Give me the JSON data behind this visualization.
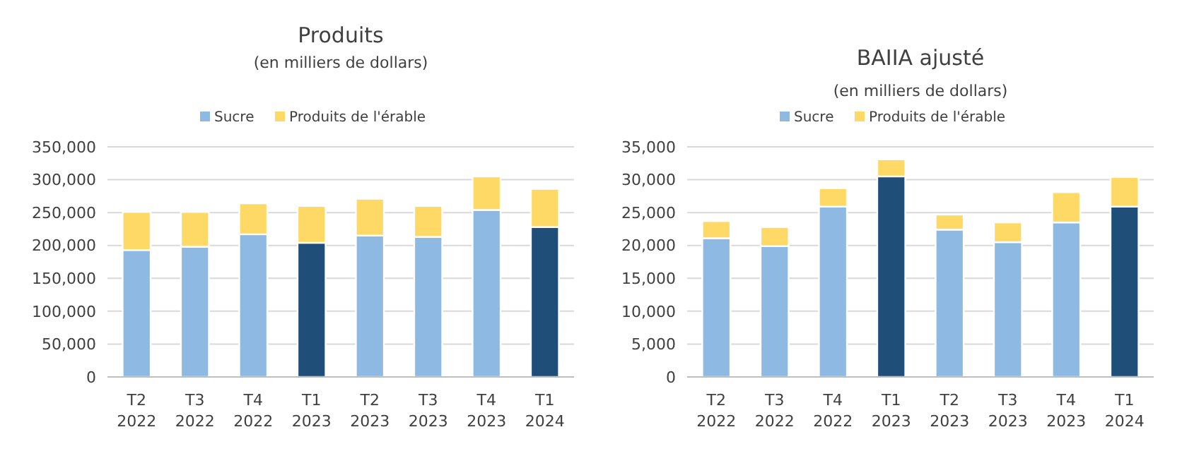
{
  "chart_data": [
    {
      "type": "bar",
      "title": "Produits",
      "subtitle": "(en milliers de dollars)",
      "categories": [
        "T2 2022",
        "T3 2022",
        "T4 2022",
        "T1 2023",
        "T2 2023",
        "T3 2023",
        "T4 2023",
        "T1 2024"
      ],
      "stacked": true,
      "series": [
        {
          "name": "Sucre",
          "color": "#8db9e2",
          "colors": [
            "#8db9e2",
            "#8db9e2",
            "#8db9e2",
            "#1f4e79",
            "#8db9e2",
            "#8db9e2",
            "#8db9e2",
            "#1f4e79"
          ],
          "values": [
            193000,
            198000,
            217000,
            204000,
            215000,
            213000,
            254000,
            228000
          ]
        },
        {
          "name": "Produits de l'érable",
          "color": "#ffd966",
          "values": [
            58000,
            53000,
            47000,
            56000,
            56000,
            47000,
            51000,
            58000
          ]
        }
      ],
      "ylim": [
        0,
        350000
      ],
      "yticks": [
        {
          "value": 0,
          "label": "0"
        },
        {
          "value": 50000,
          "label": "50,000"
        },
        {
          "value": 100000,
          "label": "100,000"
        },
        {
          "value": 150000,
          "label": "150,000"
        },
        {
          "value": 200000,
          "label": "200,000"
        },
        {
          "value": 250000,
          "label": "250,000"
        },
        {
          "value": 300000,
          "label": "300,000"
        },
        {
          "value": 350000,
          "label": "350,000"
        }
      ],
      "grid": "y",
      "legend": "top"
    },
    {
      "type": "bar",
      "title": "BAIIA ajusté",
      "subtitle": "(en milliers de dollars)",
      "categories": [
        "T2 2022",
        "T3 2022",
        "T4 2022",
        "T1 2023",
        "T2 2023",
        "T3 2023",
        "T4 2023",
        "T1 2024"
      ],
      "stacked": true,
      "series": [
        {
          "name": "Sucre",
          "color": "#8db9e2",
          "colors": [
            "#8db9e2",
            "#8db9e2",
            "#8db9e2",
            "#1f4e79",
            "#8db9e2",
            "#8db9e2",
            "#8db9e2",
            "#1f4e79"
          ],
          "values": [
            21100,
            19900,
            25900,
            30500,
            22400,
            20500,
            23500,
            25900
          ]
        },
        {
          "name": "Produits de l'érable",
          "color": "#ffd966",
          "values": [
            2600,
            2900,
            2800,
            2600,
            2300,
            3000,
            4600,
            4500
          ]
        }
      ],
      "ylim": [
        0,
        35000
      ],
      "yticks": [
        {
          "value": 0,
          "label": "0"
        },
        {
          "value": 5000,
          "label": "5,000"
        },
        {
          "value": 10000,
          "label": "10,000"
        },
        {
          "value": 15000,
          "label": "15,000"
        },
        {
          "value": 20000,
          "label": "20,000"
        },
        {
          "value": 25000,
          "label": "25,000"
        },
        {
          "value": 30000,
          "label": "30,000"
        },
        {
          "value": 35000,
          "label": "35,000"
        }
      ],
      "grid": "y",
      "legend": "top"
    }
  ]
}
